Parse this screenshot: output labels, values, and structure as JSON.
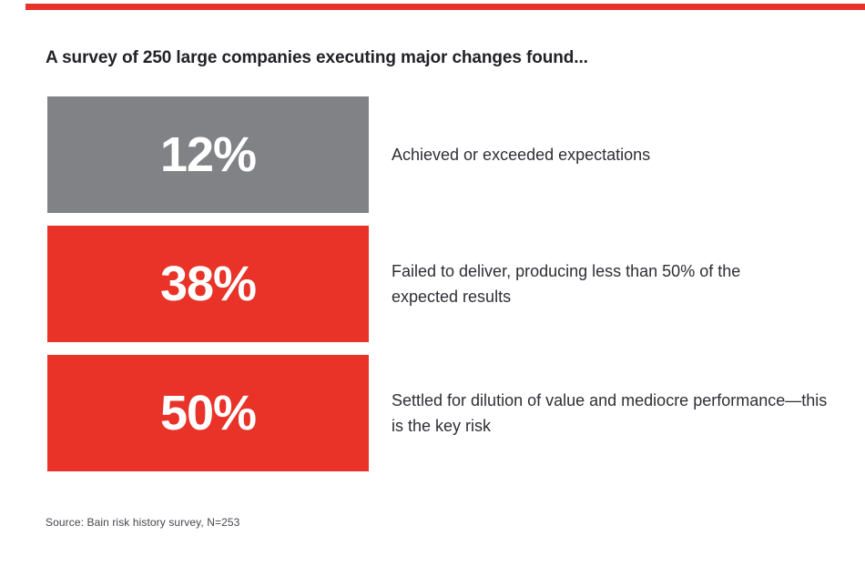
{
  "slide": {
    "title": "A survey of 250 large companies executing major changes found...",
    "source_note": "Source: Bain risk history survey, N=253"
  },
  "colors": {
    "accent_red": "#E8332A",
    "block_gray": "#808285",
    "block_red": "#E93228",
    "title_text": "#232127",
    "body_text": "#2F2E35",
    "source_text": "#47464C",
    "value_text": "#FFFFFF"
  },
  "rows": [
    {
      "value": "12%",
      "color": "#808285",
      "lines": [
        "Achieved or exceeded expectations"
      ]
    },
    {
      "value": "38%",
      "color": "#E93228",
      "lines": [
        "Failed to deliver, producing less than 50% of the",
        "expected results"
      ]
    },
    {
      "value": "50%",
      "color": "#E93228",
      "lines": [
        "Settled for dilution of value and mediocre performance—this",
        "is the key risk"
      ]
    }
  ],
  "chart_data": {
    "type": "bar",
    "title": "A survey of 250 large companies executing major changes found...",
    "categories": [
      "Achieved or exceeded expectations",
      "Failed to deliver, producing less than 50% of the expected results",
      "Settled for dilution of value and mediocre performance—this is the key risk"
    ],
    "values": [
      12,
      38,
      50
    ],
    "unit": "%",
    "xlabel": "",
    "ylabel": "",
    "legend_position": "none",
    "grid": false,
    "layout_hint": "three equal-width stat blocks stacked vertically; value centered in block, description at right",
    "source": "Source: Bain risk history survey, N=253"
  }
}
